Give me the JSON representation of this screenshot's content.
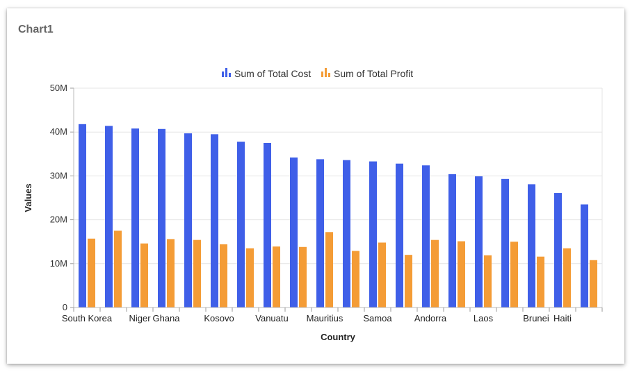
{
  "card": {
    "title": "Chart1"
  },
  "chart_data": {
    "type": "bar",
    "xlabel": "Country",
    "ylabel": "Values",
    "ylim": [
      0,
      50000000
    ],
    "yticks": [
      "0",
      "10M",
      "20M",
      "30M",
      "40M",
      "50M"
    ],
    "grid": true,
    "legend_position": "top-center",
    "categories": [
      "South Korea",
      "",
      "Niger",
      "Ghana",
      "",
      "Kosovo",
      "",
      "Vanuatu",
      "",
      "Mauritius",
      "",
      "Samoa",
      "",
      "Andorra",
      "",
      "Laos",
      "",
      "Brunei",
      "Haiti",
      ""
    ],
    "series": [
      {
        "name": "Sum of Total Cost",
        "color": "#3f5fe8",
        "icon": "bar-chart-icon",
        "values": [
          41800000,
          41400000,
          40800000,
          40700000,
          39700000,
          39500000,
          37800000,
          37500000,
          34200000,
          33800000,
          33600000,
          33300000,
          32800000,
          32400000,
          30400000,
          29900000,
          29300000,
          28100000,
          26100000,
          23500000
        ]
      },
      {
        "name": "Sum of Total Profit",
        "color": "#f49c36",
        "icon": "bar-chart-icon",
        "values": [
          15700000,
          17500000,
          14600000,
          15600000,
          15400000,
          14400000,
          13500000,
          13900000,
          13800000,
          17200000,
          12900000,
          14800000,
          12000000,
          15400000,
          15100000,
          11900000,
          15000000,
          11600000,
          13500000,
          10800000
        ]
      }
    ]
  }
}
